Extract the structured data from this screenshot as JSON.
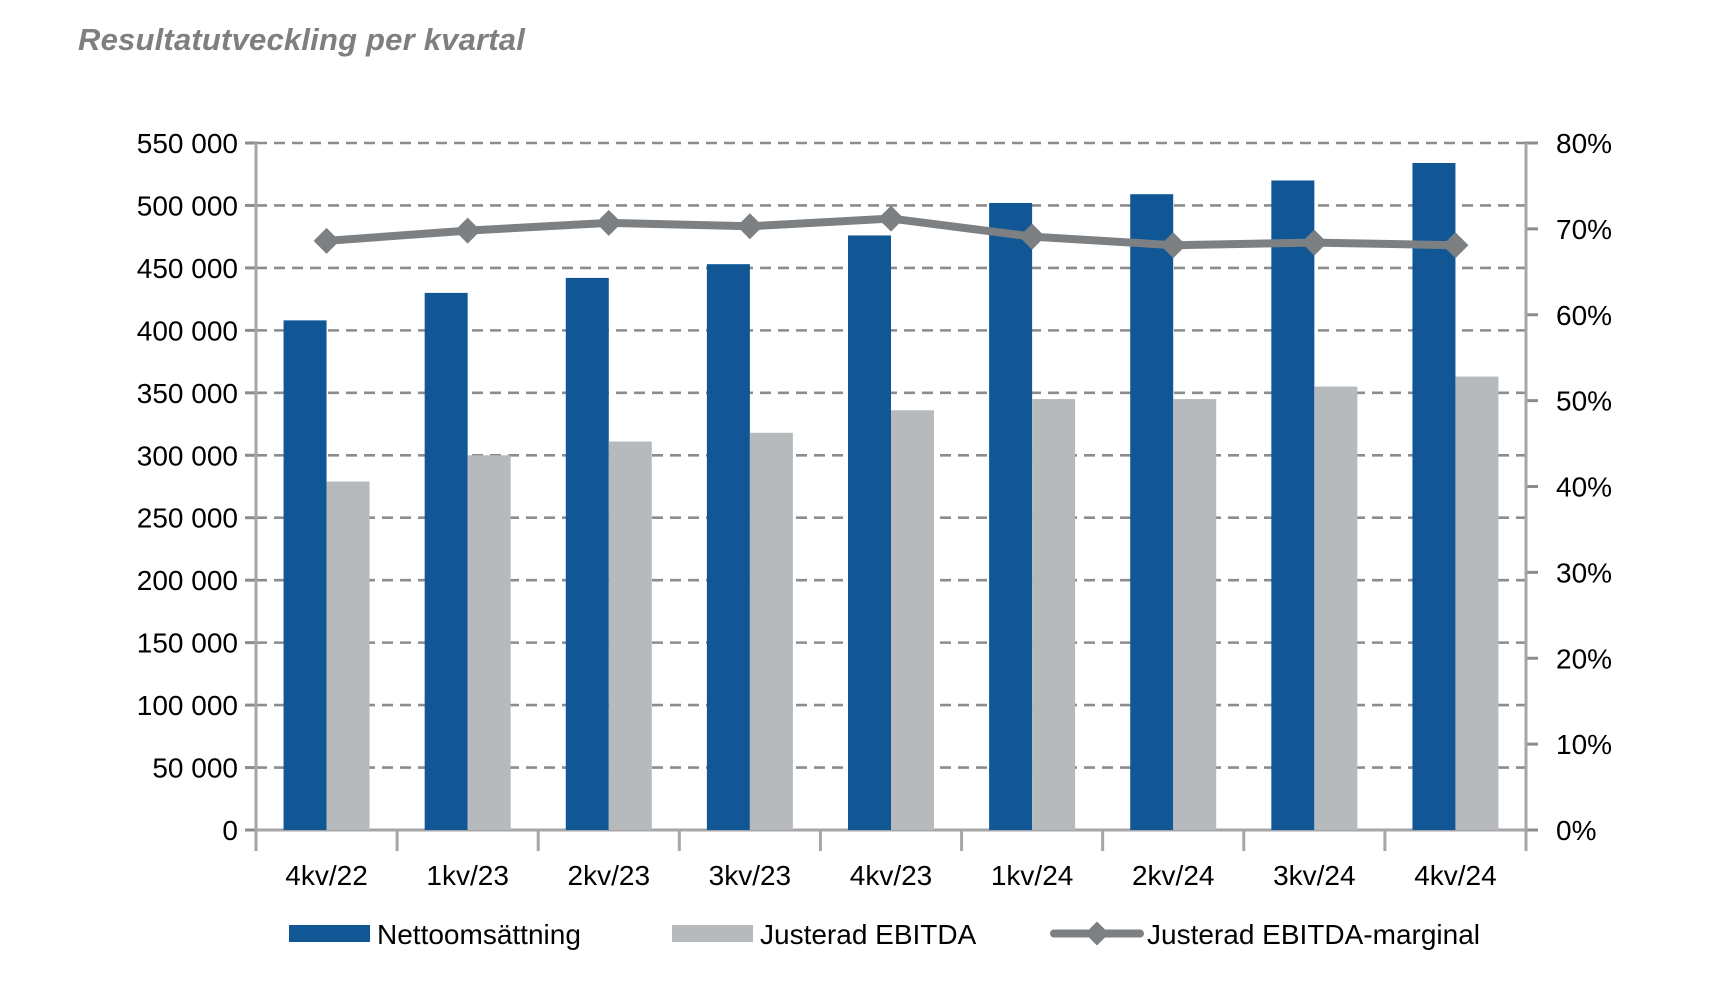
{
  "title": "Resultatutveckling per kvartal",
  "colors": {
    "bar_primary": "#115795",
    "bar_secondary": "#b6babd",
    "line_series": "#7d8083",
    "gridline": "#8c8c8c",
    "axis": "#a6a6a8",
    "title_text": "#7f7f7f",
    "label_text": "#000000"
  },
  "chart_data": {
    "type": "bar",
    "subtype": "grouped-bars-with-line-on-secondary-axis",
    "title": "Resultatutveckling per kvartal",
    "categories": [
      "4kv/22",
      "1kv/23",
      "2kv/23",
      "3kv/23",
      "4kv/23",
      "1kv/24",
      "2kv/24",
      "3kv/24",
      "4kv/24"
    ],
    "series": [
      {
        "name": "Nettoomsättning",
        "type": "bar",
        "axis": "left",
        "color": "#115795",
        "values": [
          408000,
          430000,
          442000,
          453000,
          476000,
          502000,
          509000,
          520000,
          534000
        ]
      },
      {
        "name": "Justerad EBITDA",
        "type": "bar",
        "axis": "left",
        "color": "#b6babd",
        "values": [
          279000,
          300000,
          311000,
          318000,
          336000,
          345000,
          345000,
          355000,
          363000
        ]
      },
      {
        "name": "Justerad EBITDA-marginal",
        "type": "line",
        "axis": "right",
        "color": "#7d8083",
        "marker": "diamond",
        "values": [
          68.6,
          69.8,
          70.7,
          70.3,
          71.2,
          69.1,
          68.1,
          68.4,
          68.1
        ]
      }
    ],
    "left_axis": {
      "min": 0,
      "max": 550000,
      "step": 50000,
      "labels": [
        "550 000",
        "500 000",
        "450 000",
        "400 000",
        "350 000",
        "300 000",
        "250 000",
        "200 000",
        "150 000",
        "100 000",
        "50 000",
        "0"
      ]
    },
    "right_axis": {
      "min": 0,
      "max": 80,
      "step": 10,
      "labels": [
        "80%",
        "70%",
        "60%",
        "50%",
        "40%",
        "30%",
        "20%",
        "10%",
        "0%"
      ]
    },
    "grid": "dashed-horizontal",
    "legend_position": "bottom"
  }
}
